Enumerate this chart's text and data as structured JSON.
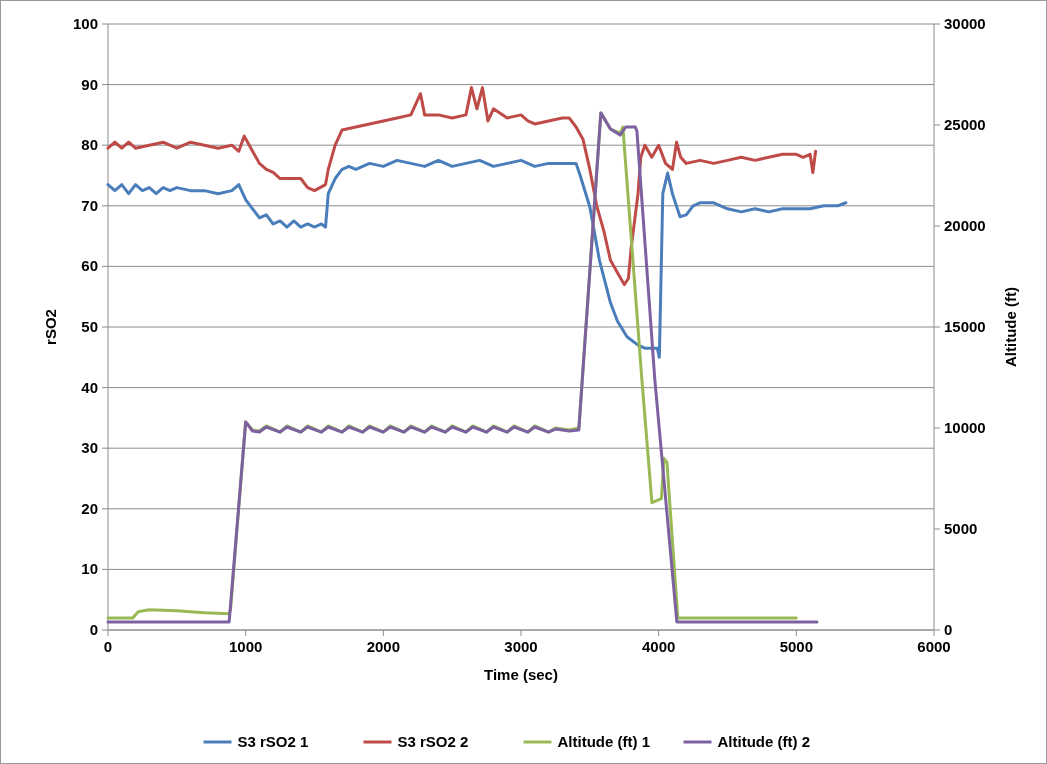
{
  "chart_data": {
    "type": "line",
    "xlabel": "Time (sec)",
    "ylabel": "rSO2",
    "y2label": "Altitude (ft)",
    "xlim": [
      0,
      6000
    ],
    "xticks": [
      0,
      1000,
      2000,
      3000,
      4000,
      5000,
      6000
    ],
    "ylim": [
      0,
      100
    ],
    "yticks": [
      0,
      10,
      20,
      30,
      40,
      50,
      60,
      70,
      80,
      90,
      100
    ],
    "y2lim": [
      0,
      30000
    ],
    "y2ticks": [
      0,
      5000,
      10000,
      15000,
      20000,
      25000,
      30000
    ],
    "grid": "y",
    "legend": "bottom",
    "marker": "none",
    "line_style": "solid",
    "series": [
      {
        "name": "S3 rSO2 1",
        "color": "#4a7ebb",
        "x": [
          0,
          50,
          100,
          150,
          200,
          250,
          300,
          350,
          400,
          450,
          500,
          600,
          700,
          800,
          900,
          950,
          1000,
          1050,
          1100,
          1150,
          1200,
          1250,
          1300,
          1350,
          1400,
          1450,
          1500,
          1550,
          1580,
          1600,
          1650,
          1700,
          1750,
          1800,
          1900,
          2000,
          2100,
          2200,
          2300,
          2400,
          2500,
          2600,
          2700,
          2800,
          2900,
          3000,
          3100,
          3200,
          3300,
          3400,
          3430,
          3500,
          3570,
          3650,
          3700,
          3770,
          3850,
          3900,
          3990,
          4005,
          4030,
          4065,
          4100,
          4155,
          4200,
          4250,
          4300,
          4400,
          4500,
          4600,
          4700,
          4800,
          4900,
          5000,
          5100,
          5200,
          5300,
          5360
        ],
        "values": [
          73.5,
          72.5,
          73.5,
          72,
          73.5,
          72.5,
          73,
          72,
          73,
          72.5,
          73,
          72.5,
          72.5,
          72,
          72.5,
          73.5,
          71,
          69.5,
          68,
          68.5,
          67,
          67.5,
          66.5,
          67.5,
          66.5,
          67,
          66.5,
          67,
          66.5,
          72,
          74.5,
          76,
          76.5,
          76,
          77,
          76.5,
          77.5,
          77,
          76.5,
          77.5,
          76.5,
          77,
          77.5,
          76.5,
          77,
          77.5,
          76.5,
          77,
          77,
          77,
          75,
          69.8,
          61,
          54,
          51,
          48.4,
          47,
          46.5,
          46.5,
          45,
          72,
          75.4,
          72,
          68.2,
          68.5,
          70,
          70.5,
          70.5,
          69.5,
          69,
          69.5,
          69,
          69.5,
          69.5,
          69.5,
          70,
          70,
          70.5
        ]
      },
      {
        "name": "S3 rSO2 2",
        "color": "#be4b48",
        "x": [
          0,
          50,
          100,
          150,
          200,
          300,
          400,
          500,
          600,
          700,
          800,
          900,
          950,
          990,
          1050,
          1100,
          1150,
          1200,
          1250,
          1300,
          1400,
          1450,
          1500,
          1580,
          1600,
          1650,
          1700,
          1800,
          1900,
          2000,
          2100,
          2200,
          2270,
          2300,
          2400,
          2500,
          2600,
          2640,
          2680,
          2720,
          2760,
          2800,
          2900,
          3000,
          3050,
          3100,
          3200,
          3300,
          3350,
          3400,
          3450,
          3500,
          3550,
          3600,
          3650,
          3700,
          3750,
          3780,
          3800,
          3850,
          3870,
          3900,
          3950,
          4000,
          4050,
          4100,
          4130,
          4160,
          4200,
          4300,
          4400,
          4500,
          4600,
          4700,
          4800,
          4900,
          5000,
          5050,
          5100,
          5120,
          5140
        ],
        "values": [
          79.5,
          80.5,
          79.5,
          80.5,
          79.5,
          80,
          80.5,
          79.5,
          80.5,
          80,
          79.5,
          80,
          79,
          81.5,
          79,
          77,
          76,
          75.5,
          74.5,
          74.5,
          74.5,
          73,
          72.5,
          73.5,
          76,
          80,
          82.5,
          83,
          83.5,
          84,
          84.5,
          85,
          88.5,
          85,
          85,
          84.5,
          85,
          89.5,
          86,
          89.5,
          84,
          86,
          84.5,
          85,
          84,
          83.5,
          84,
          84.5,
          84.5,
          83,
          81,
          76,
          70,
          66,
          61,
          59,
          57,
          58,
          63,
          72,
          78,
          80,
          78,
          80,
          77,
          76,
          80.5,
          78,
          77,
          77.5,
          77,
          77.5,
          78,
          77.5,
          78,
          78.5,
          78.5,
          78,
          78.5,
          75.5,
          79
        ]
      },
      {
        "name": "Altitude (ft) 1",
        "color": "#98b954",
        "axis": "y2",
        "x": [
          0,
          180,
          220,
          300,
          500,
          700,
          880,
          890,
          1000,
          1050,
          1100,
          1150,
          1250,
          1300,
          1400,
          1450,
          1550,
          1600,
          1700,
          1750,
          1850,
          1900,
          2000,
          2050,
          2150,
          2200,
          2300,
          2350,
          2450,
          2500,
          2600,
          2650,
          2750,
          2800,
          2900,
          2950,
          3050,
          3100,
          3200,
          3250,
          3350,
          3420,
          3580,
          3650,
          3720,
          3740,
          3878,
          3951,
          4020,
          4038,
          4060,
          4139,
          5000
        ],
        "values": [
          600,
          600,
          900,
          1000,
          950,
          850,
          800,
          1000,
          10300,
          9900,
          9850,
          10100,
          9800,
          10100,
          9800,
          10100,
          9800,
          10100,
          9800,
          10100,
          9800,
          10100,
          9800,
          10100,
          9800,
          10100,
          9800,
          10100,
          9800,
          10100,
          9800,
          10100,
          9800,
          10100,
          9800,
          10100,
          9800,
          10100,
          9800,
          10000,
          9900,
          10000,
          25600,
          24800,
          24600,
          24900,
          12400,
          6300,
          6500,
          8500,
          8300,
          600,
          600
        ]
      },
      {
        "name": "Altitude (ft) 2",
        "color": "#7d60a0",
        "axis": "y2",
        "x": [
          0,
          880,
          1000,
          1050,
          1100,
          1150,
          1250,
          1300,
          1400,
          1450,
          1550,
          1600,
          1700,
          1750,
          1850,
          1900,
          2000,
          2050,
          2150,
          2200,
          2300,
          2350,
          2450,
          2500,
          2600,
          2650,
          2750,
          2800,
          2900,
          2950,
          3050,
          3100,
          3200,
          3250,
          3350,
          3420,
          3580,
          3650,
          3720,
          3760,
          3830,
          3842,
          3972,
          4132,
          5150
        ],
        "values": [
          400,
          400,
          10300,
          9850,
          9800,
          10050,
          9800,
          10050,
          9800,
          10050,
          9800,
          10050,
          9800,
          10050,
          9800,
          10050,
          9800,
          10050,
          9800,
          10050,
          9800,
          10050,
          9800,
          10050,
          9800,
          10050,
          9800,
          10050,
          9800,
          10050,
          9800,
          10050,
          9800,
          9950,
          9850,
          9900,
          25600,
          24800,
          24500,
          24900,
          24900,
          24700,
          12400,
          400,
          400
        ]
      }
    ]
  }
}
